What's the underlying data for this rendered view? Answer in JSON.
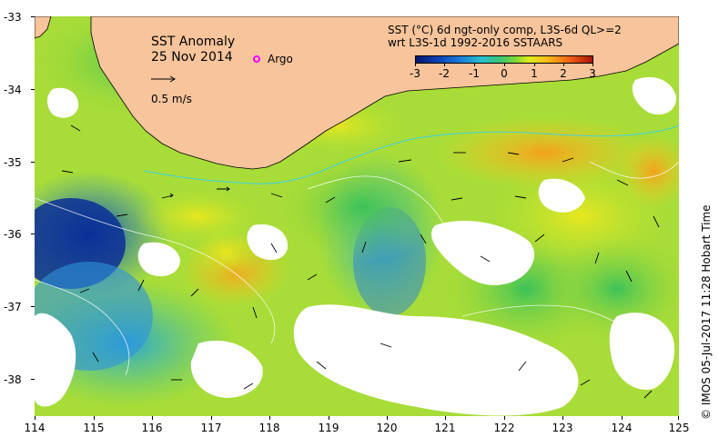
{
  "map": {
    "title_line1": "SST Anomaly",
    "title_line2": "25 Nov 2014",
    "argo_label": "Argo",
    "scale_label": "0.5 m/s",
    "legend_line1": "SST (°C) 6d ngt-only comp, L3S-6d QL>=2",
    "legend_line2": "wrt L3S-1d 1992-2016 SSTAARS",
    "colorbar_ticks": [
      "-3",
      "-2",
      "-1",
      "0",
      "1",
      "2",
      "3"
    ],
    "y_ticks": [
      "-33",
      "-34",
      "-35",
      "-36",
      "-37",
      "-38"
    ],
    "x_ticks": [
      "114",
      "115",
      "116",
      "117",
      "118",
      "119",
      "120",
      "121",
      "122",
      "123",
      "124",
      "125"
    ],
    "credit": "© IMOS 05-Jul-2017 11:28 Hobart Time",
    "colors": {
      "land": "#f7c49b",
      "argo": "#ff00ff",
      "anomaly_low": "#08186e",
      "anomaly_high": "#a6160c"
    }
  }
}
